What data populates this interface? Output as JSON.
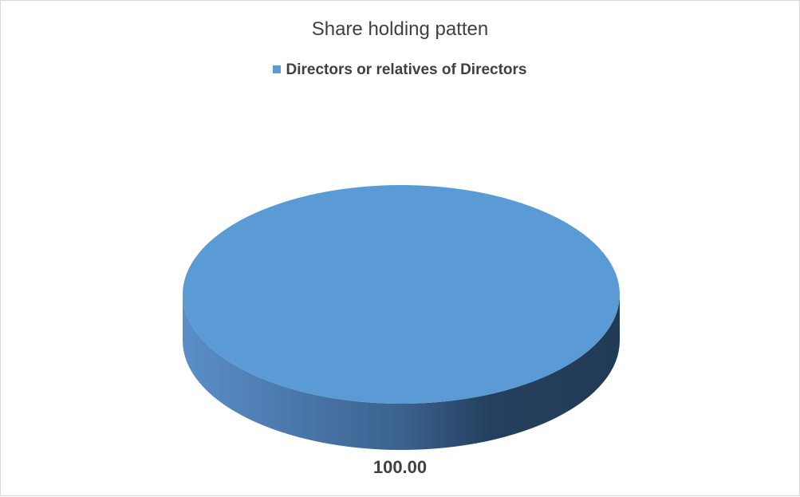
{
  "chart_data": {
    "type": "pie",
    "title": "Share holding patten",
    "categories": [
      "Directors or relatives of Directors"
    ],
    "values": [
      100.0
    ],
    "data_labels": [
      "100.00"
    ],
    "legend_position": "top",
    "three_d": true,
    "colors": [
      "#5b9bd5"
    ]
  }
}
